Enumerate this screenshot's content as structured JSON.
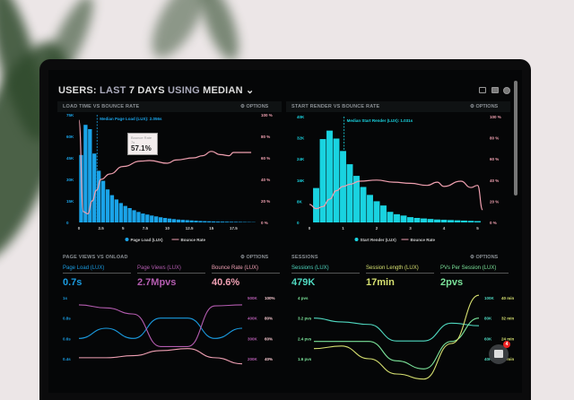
{
  "header": {
    "prefix": "USERS:",
    "last": "LAST",
    "days": "7 DAYS",
    "using": "USING",
    "stat": "MEDIAN",
    "chevron": "⌄"
  },
  "toolbar": {
    "icons": [
      "monitor-icon",
      "chart-icon",
      "help-icon"
    ]
  },
  "panels": {
    "load": {
      "title": "LOAD TIME VS BOUNCE RATE",
      "options": "OPTIONS",
      "median_label": "Median Page Load (LUX): 2.056s",
      "tooltip": {
        "title": "Bounce Rate",
        "sub": "7s",
        "value": "57.1%"
      },
      "legend": [
        "Page Load (LUX)",
        "Bounce Rate"
      ]
    },
    "render": {
      "title": "START RENDER VS BOUNCE RATE",
      "options": "OPTIONS",
      "median_label": "Median Start Render (LUX): 1.031s",
      "legend": [
        "Start Render (LUX)",
        "Bounce Rate"
      ]
    },
    "pageviews": {
      "title": "PAGE VIEWS VS ONLOAD",
      "options": "OPTIONS",
      "kpis": [
        {
          "label": "Page Load (LUX)",
          "value": "0.7s",
          "color": "#1a9be0"
        },
        {
          "label": "Page Views (LUX)",
          "value": "2.7Mpvs",
          "color": "#b45cb0"
        },
        {
          "label": "Bounce Rate (LUX)",
          "value": "40.6%",
          "color": "#f0a0b4"
        }
      ]
    },
    "sessions": {
      "title": "SESSIONS",
      "options": "OPTIONS",
      "kpis": [
        {
          "label": "Sessions (LUX)",
          "value": "479K",
          "color": "#4fd8c0"
        },
        {
          "label": "Session Length (LUX)",
          "value": "17min",
          "color": "#d6e070"
        },
        {
          "label": "PVs Per Session (LUX)",
          "value": "2pvs",
          "color": "#7be39a"
        }
      ]
    }
  },
  "chat": {
    "badge": "4"
  },
  "colors": {
    "bar1": "#1aa3e8",
    "bar2": "#19d3e0",
    "bounce": "#f0a0b0"
  },
  "chart_data": [
    {
      "type": "bar",
      "title": "LOAD TIME VS BOUNCE RATE",
      "xlim": [
        0,
        20
      ],
      "xticks": [
        "0",
        "2.5",
        "5",
        "7.5",
        "10",
        "12.5",
        "15",
        "17.5"
      ],
      "xtick_values": [
        0,
        2.5,
        5,
        7.5,
        10,
        12.5,
        15,
        17.5
      ],
      "ylim": [
        0,
        75000
      ],
      "yticks": [
        "0",
        "15K",
        "30K",
        "45K",
        "60K",
        "75K"
      ],
      "y2lim": [
        0,
        100
      ],
      "y2ticks": [
        "0 %",
        "20 %",
        "40 %",
        "60 %",
        "80 %",
        "100 %"
      ],
      "median": 2.056,
      "series": [
        {
          "name": "Page Load (LUX)",
          "type": "bar",
          "bin_width": 0.5,
          "x": [
            0,
            0.5,
            1,
            1.5,
            2,
            2.5,
            3,
            3.5,
            4,
            4.5,
            5,
            5.5,
            6,
            6.5,
            7,
            7.5,
            8,
            8.5,
            9,
            9.5,
            10,
            10.5,
            11,
            11.5,
            12,
            12.5,
            13,
            13.5,
            14,
            14.5,
            15,
            15.5,
            16,
            16.5,
            17,
            17.5,
            18,
            18.5,
            19,
            19.5
          ],
          "values": [
            47000,
            68000,
            65000,
            48000,
            36000,
            29000,
            23000,
            19000,
            16000,
            13500,
            11500,
            10000,
            8500,
            7300,
            6200,
            5500,
            4800,
            4200,
            3600,
            3100,
            2700,
            2300,
            2000,
            1800,
            1600,
            1400,
            1200,
            1000,
            900,
            800,
            700,
            600,
            550,
            500,
            450,
            400,
            350,
            300,
            250,
            200
          ]
        },
        {
          "name": "Bounce Rate",
          "type": "line",
          "axis": "right",
          "x": [
            0,
            0.5,
            1,
            1.5,
            2,
            2.5,
            3.5,
            5,
            7,
            8,
            10,
            11,
            13,
            14,
            15,
            16,
            17,
            17.5,
            19.5
          ],
          "values": [
            95,
            10,
            8,
            20,
            30,
            40,
            45,
            52,
            57,
            57.5,
            55,
            58,
            60,
            62,
            66,
            63,
            62,
            65,
            65
          ]
        }
      ]
    },
    {
      "type": "bar",
      "title": "START RENDER VS BOUNCE RATE",
      "xlim": [
        0,
        5.2
      ],
      "xticks": [
        "0",
        "1",
        "2",
        "3",
        "4",
        "5"
      ],
      "xtick_values": [
        0,
        1,
        2,
        3,
        4,
        5
      ],
      "ylim": [
        0,
        40000
      ],
      "yticks": [
        "0",
        "8K",
        "16K",
        "24K",
        "32K",
        "40K"
      ],
      "y2lim": [
        0,
        100
      ],
      "y2ticks": [
        "0 %",
        "20 %",
        "40 %",
        "60 %",
        "80 %",
        "100 %"
      ],
      "median": 1.031,
      "series": [
        {
          "name": "Start Render (LUX)",
          "type": "bar",
          "bin_width": 0.2,
          "x": [
            0.2,
            0.4,
            0.6,
            0.8,
            1.0,
            1.2,
            1.4,
            1.6,
            1.8,
            2.0,
            2.2,
            2.4,
            2.6,
            2.8,
            3.0,
            3.2,
            3.4,
            3.6,
            3.8,
            4.0,
            4.2,
            4.4,
            4.6,
            4.8,
            5.0
          ],
          "values": [
            13000,
            31500,
            34700,
            31700,
            27000,
            22000,
            17600,
            13400,
            10400,
            8000,
            6400,
            4000,
            3100,
            2600,
            2000,
            1700,
            1500,
            1300,
            1100,
            1000,
            900,
            800,
            700,
            600,
            500
          ]
        },
        {
          "name": "Bounce Rate",
          "type": "line",
          "axis": "right",
          "x": [
            0,
            0.2,
            0.4,
            0.6,
            0.8,
            1,
            1.2,
            1.5,
            2,
            2.5,
            3,
            3.5,
            3.8,
            4,
            4.5,
            4.8,
            5,
            5.15
          ],
          "values": [
            17,
            13,
            15,
            22,
            30,
            34,
            36,
            39,
            40,
            38,
            37,
            35,
            38,
            34,
            39,
            33,
            35,
            12
          ]
        }
      ]
    },
    {
      "type": "line",
      "title": "PAGE VIEWS VS ONLOAD",
      "x": [
        0,
        1,
        2,
        3,
        4,
        5,
        6
      ],
      "ylim": [
        0.4,
        1
      ],
      "yticks": [
        "0.4s",
        "0.6s",
        "0.8s",
        "1s"
      ],
      "y2lim": [
        200000,
        500000
      ],
      "y2ticks": [
        "200K",
        "300K",
        "400K",
        "500K"
      ],
      "y3lim": [
        40,
        100
      ],
      "y3ticks": [
        "40%",
        "60%",
        "80%",
        "100%"
      ],
      "series": [
        {
          "name": "Page Load (LUX)",
          "axis": "left",
          "values": [
            0.6,
            0.7,
            0.6,
            0.8,
            0.8,
            0.6,
            0.7
          ]
        },
        {
          "name": "Page Views (LUX)",
          "axis": "right",
          "values": [
            465000,
            450000,
            420000,
            260000,
            260000,
            460000,
            465000
          ]
        },
        {
          "name": "Bounce Rate (LUX)",
          "axis": "right2",
          "values": [
            41,
            41,
            43,
            48,
            50,
            41,
            35
          ]
        }
      ]
    },
    {
      "type": "line",
      "title": "SESSIONS",
      "x": [
        0,
        1,
        2,
        3,
        4,
        5,
        6
      ],
      "ylim": [
        1.6,
        4
      ],
      "yticks": [
        "1.6 pvs",
        "2.4 pvs",
        "3.2 pvs",
        "4 pvs"
      ],
      "y2lim": [
        40000,
        100000
      ],
      "y2ticks": [
        "40K",
        "60K",
        "80K",
        "100K"
      ],
      "y3lim": [
        16,
        40
      ],
      "y3ticks": [
        "16 min",
        "24 min",
        "32 min",
        "40 min"
      ],
      "series": [
        {
          "name": "PVs Per Session (LUX)",
          "axis": "left",
          "values": [
            3.2,
            3.05,
            2.95,
            2.3,
            2.3,
            3.0,
            2.9
          ]
        },
        {
          "name": "Sessions (LUX)",
          "axis": "right",
          "values": [
            57000,
            57000,
            57000,
            38000,
            30000,
            57000,
            80000
          ]
        },
        {
          "name": "Session Length (LUX)",
          "axis": "right2",
          "values": [
            20,
            21,
            16,
            10,
            8,
            22,
            41
          ]
        }
      ]
    }
  ]
}
